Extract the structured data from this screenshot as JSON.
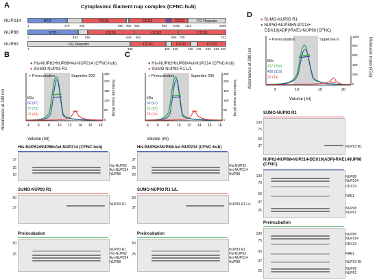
{
  "panel_a": {
    "letter": "A",
    "title": "Cytoplasmic filament nup complex (CFNC-hub)",
    "proteins": [
      {
        "name": "NUP214",
        "domains": [
          "NTD",
          "CCS1",
          "CCS2",
          "CCS3",
          "FG Repeats"
        ],
        "numbers": [
          "1",
          "478",
          "695",
          "880",
          "905",
          "853",
          "963",
          "1058",
          "1110",
          "2090"
        ]
      },
      {
        "name": "NUP88",
        "domains": [
          "NTD",
          "CCS1",
          "CCS2",
          "CCS3"
        ],
        "numbers": [
          "1",
          "493",
          "559",
          "649",
          "654",
          "695",
          "708",
          "741"
        ]
      },
      {
        "name": "NUP62",
        "domains": [
          "FG Repeats",
          "CCS1",
          "CCS2",
          "CCS3"
        ],
        "numbers": [
          "1",
          "330",
          "420",
          "425",
          "460",
          "478",
          "493",
          "519",
          "522"
        ]
      }
    ]
  },
  "panel_b": {
    "letter": "B",
    "legend": [
      "His-NUP62•NUP88•Avi-NUP214 (CFNC-hub)",
      "SUMO-NUP93 R1",
      "Preincubation"
    ],
    "column": "Superdex 200",
    "kda_title": "kDa",
    "kda": [
      "66 (97)",
      "77 (73)",
      "22 (24)"
    ],
    "gels": [
      {
        "title": "His-NUP62•NUP88•Avi-NUP214 (CFNC-hub)",
        "bands": [
          "His-NUP62",
          "Avi-NUP214",
          "NUP88"
        ]
      },
      {
        "title": "SUMO-NUP93 R1",
        "bands": [
          "NUP93 R1"
        ]
      },
      {
        "title": "Preincubation",
        "bands": [
          "NUP93 R1",
          "His-NUP62",
          "Avi-NUP214",
          "NUP88"
        ]
      }
    ]
  },
  "panel_c": {
    "letter": "C",
    "legend": [
      "His-NUP62•NUP88•Avi-NUP214 (CFNC-hub)",
      "SUMO-NUP93 R1 L/L",
      "Preincubation"
    ],
    "column": "Superdex 200",
    "kda_title": "kDa",
    "kda": [
      "69 (97)",
      "73 (97)",
      "75 (24)"
    ],
    "gels": [
      {
        "title": "His-NUP62•NUP88•Avi-NUP214 (CFNC-hub)",
        "bands": [
          "His-NUP62",
          "Avi-NUP214",
          "NUP88"
        ]
      },
      {
        "title": "SUMO-NUP93 R1 L/L",
        "bands": [
          "NUP93 R1 L/L"
        ]
      },
      {
        "title": "Preincubation",
        "bands": [
          "NUP93 R1",
          "His-NUP62",
          "Avi-NUP214",
          "NUP88"
        ]
      }
    ]
  },
  "panel_d": {
    "letter": "D",
    "legend": [
      "SUMO-NUP93 R1",
      "NUP62•NUP88•NUP214•",
      "DDX19(ADP)•RAE1•NUP98 (CFNC)",
      "Preincubation"
    ],
    "column": "Superose 6",
    "kda_title": "kDa",
    "kda": [
      "417 (334)",
      "406 (310)",
      "22 (24)"
    ],
    "y_left_label": "Absorbance at 280 nm",
    "y_right_label": "Molecular mass (kDa)",
    "gels": [
      {
        "title": "SUMO-NUP93 R1",
        "bands": [
          "NUP93 R1"
        ]
      },
      {
        "title": "NUP62•NUP88•NUP214•DDX19(ADP)•RAE1•NUP98 (CFNC)",
        "bands": [
          "NUP88",
          "NUP214",
          "DDX19",
          "RAE1",
          "NUP98",
          "NUP62"
        ]
      },
      {
        "title": "Preincubation",
        "bands": [
          "NUP88",
          "NUP214",
          "DDX19",
          "RAE1",
          "NUP93 R1",
          "NUP98",
          "NUP62"
        ]
      }
    ]
  },
  "axes": {
    "y_left": "Absorbance at 280 nm",
    "y_right": "Molecular mass (kDa)",
    "x": "Volume (ml)",
    "bc_xticks": [
      "4",
      "6",
      "8",
      "10",
      "12",
      "14",
      "16",
      "18"
    ],
    "d_xticks": [
      "5",
      "10",
      "15",
      "20"
    ],
    "d_right_ticks": [
      "0",
      "200",
      "400",
      "600",
      "800",
      "1000"
    ],
    "bc_right_ticks": [
      "0",
      "50",
      "100",
      "150",
      "200",
      "250"
    ]
  },
  "mw_markers": {
    "bc": [
      "100",
      "75",
      "50",
      "37",
      "25",
      "20"
    ],
    "d": [
      "100",
      "75",
      "50",
      "37",
      "25",
      "20"
    ]
  },
  "colors": {
    "blue": "#2b4fa8",
    "red": "#e03c3c",
    "green": "#3aa84b",
    "purple": "#7b3fa0",
    "grey": "#bfbfbf",
    "ccs": "#e85a5a",
    "ntd": "#6f8fd6"
  }
}
